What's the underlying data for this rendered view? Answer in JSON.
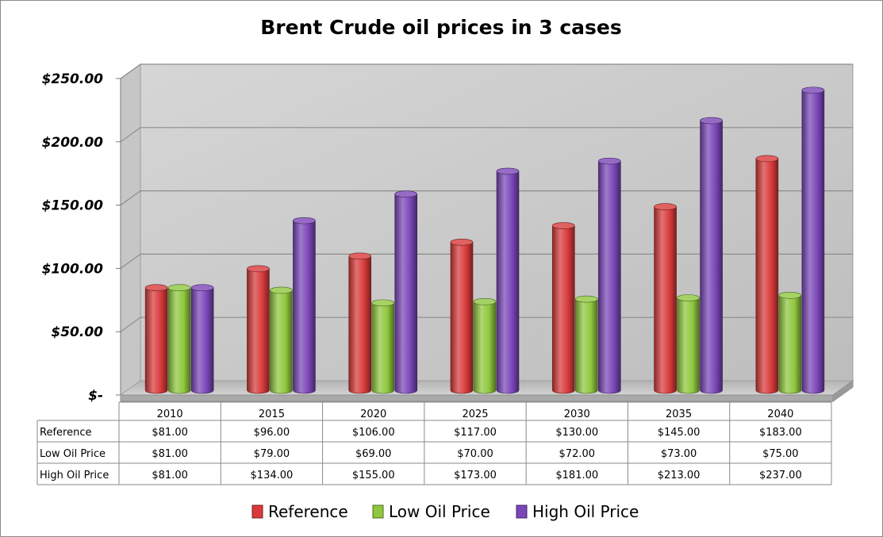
{
  "chart_data": {
    "type": "bar",
    "title": "Brent Crude oil prices in 3 cases",
    "categories": [
      "2010",
      "2015",
      "2020",
      "2025",
      "2030",
      "2035",
      "2040"
    ],
    "series": [
      {
        "name": "Reference",
        "color": "#d83a3a",
        "values": [
          81,
          96,
          106,
          117,
          130,
          145,
          183
        ]
      },
      {
        "name": "Low Oil Price",
        "color": "#8fc73e",
        "values": [
          81,
          79,
          69,
          70,
          72,
          73,
          75
        ]
      },
      {
        "name": "High Oil Price",
        "color": "#7a46b8",
        "values": [
          81,
          134,
          155,
          173,
          181,
          213,
          237
        ]
      }
    ],
    "ylim": [
      0,
      250
    ],
    "yticks": [
      0,
      50,
      100,
      150,
      200,
      250
    ],
    "ytick_labels": [
      "$-",
      "$50.00",
      "$100.00",
      "$150.00",
      "$200.00",
      "$250.00"
    ],
    "table": {
      "rows": [
        {
          "label": "Reference",
          "cells": [
            "$81.00",
            "$96.00",
            "$106.00",
            "$117.00",
            "$130.00",
            "$145.00",
            "$183.00"
          ]
        },
        {
          "label": "Low Oil Price",
          "cells": [
            "$81.00",
            "$79.00",
            "$69.00",
            "$70.00",
            "$72.00",
            "$73.00",
            "$75.00"
          ]
        },
        {
          "label": "High Oil Price",
          "cells": [
            "$81.00",
            "$134.00",
            "$155.00",
            "$173.00",
            "$181.00",
            "$213.00",
            "$237.00"
          ]
        }
      ]
    },
    "grid": true,
    "legend": "bottom"
  }
}
